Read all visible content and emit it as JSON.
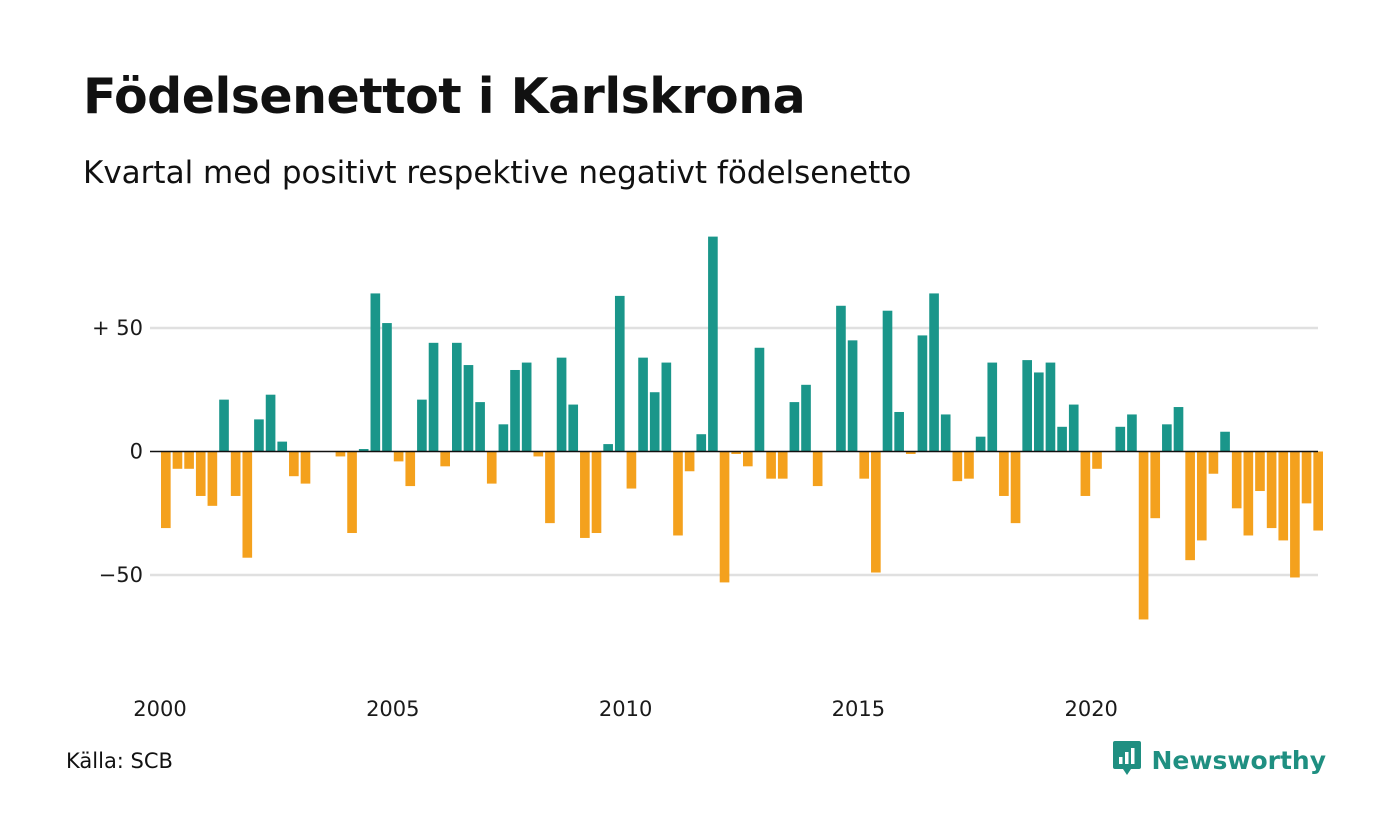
{
  "title": "Födelsenettot i Karlskrona",
  "subtitle": "Kvartal med positivt respektive negativt födelsenetto",
  "source": "Källa: SCB",
  "brand": "Newsworthy",
  "colors": {
    "positive": "#1a968a",
    "negative": "#f4a11d",
    "grid": "#e0e0e0",
    "zero": "#111111",
    "brand": "#1f8f81"
  },
  "icons": {
    "brand_logo": "chart-bubble-icon"
  },
  "chart_data": {
    "type": "bar",
    "ylim": [
      -80,
      87
    ],
    "y_ticks": [
      {
        "value": 50,
        "label": "+ 50"
      },
      {
        "value": 0,
        "label": "0"
      },
      {
        "value": -50,
        "label": "−50"
      }
    ],
    "x_ticks": [
      {
        "value": 2000,
        "label": "2000"
      },
      {
        "value": 2005,
        "label": "2005"
      },
      {
        "value": 2010,
        "label": "2010"
      },
      {
        "value": 2015,
        "label": "2015"
      },
      {
        "value": 2020,
        "label": "2020"
      }
    ],
    "grid": true,
    "x_start": "2000 Q1",
    "period": "quarter",
    "values": [
      -31,
      -7,
      -7,
      -18,
      -22,
      21,
      -18,
      -43,
      13,
      23,
      4,
      -10,
      -13,
      0,
      0,
      -2,
      -33,
      1,
      64,
      52,
      -4,
      -14,
      21,
      44,
      -6,
      44,
      35,
      20,
      -13,
      11,
      33,
      36,
      -2,
      -29,
      38,
      19,
      -35,
      -33,
      3,
      63,
      -15,
      38,
      24,
      36,
      -34,
      -8,
      7,
      87,
      -53,
      -1,
      -6,
      42,
      -11,
      -11,
      20,
      27,
      -14,
      0,
      59,
      45,
      -11,
      -49,
      57,
      16,
      -1,
      47,
      64,
      15,
      -12,
      -11,
      6,
      36,
      -18,
      -29,
      37,
      32,
      36,
      10,
      19,
      -18,
      -7,
      0,
      10,
      15,
      -68,
      -27,
      11,
      18,
      -44,
      -36,
      -9,
      8,
      -23,
      -34,
      -16,
      -31,
      -36,
      -51,
      -21,
      -32
    ]
  }
}
